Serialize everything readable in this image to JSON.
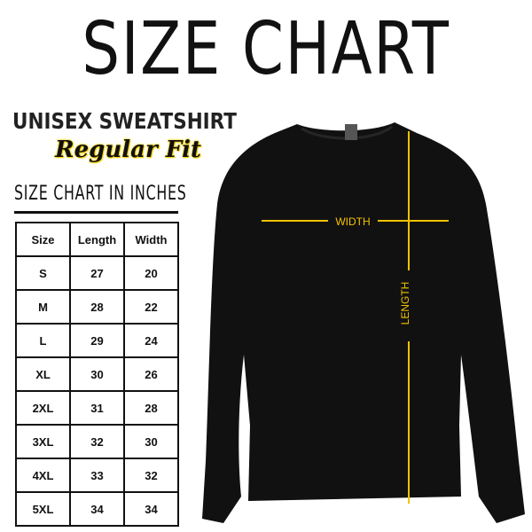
{
  "title": "SIZE CHART",
  "product": "UNISEX SWEATSHIRT",
  "fit": "Regular Fit",
  "chart_heading": "SIZE CHART IN INCHES",
  "table": {
    "headers": [
      "Size",
      "Length",
      "Width"
    ],
    "rows": [
      [
        "S",
        "27",
        "20"
      ],
      [
        "M",
        "28",
        "22"
      ],
      [
        "L",
        "29",
        "24"
      ],
      [
        "XL",
        "30",
        "26"
      ],
      [
        "2XL",
        "31",
        "28"
      ],
      [
        "3XL",
        "32",
        "30"
      ],
      [
        "4XL",
        "33",
        "32"
      ],
      [
        "5XL",
        "34",
        "34"
      ]
    ]
  },
  "measure": {
    "width_label": "WIDTH",
    "length_label": "LENGTH",
    "line_color": "#f2c200"
  },
  "garment_color": "#111111"
}
